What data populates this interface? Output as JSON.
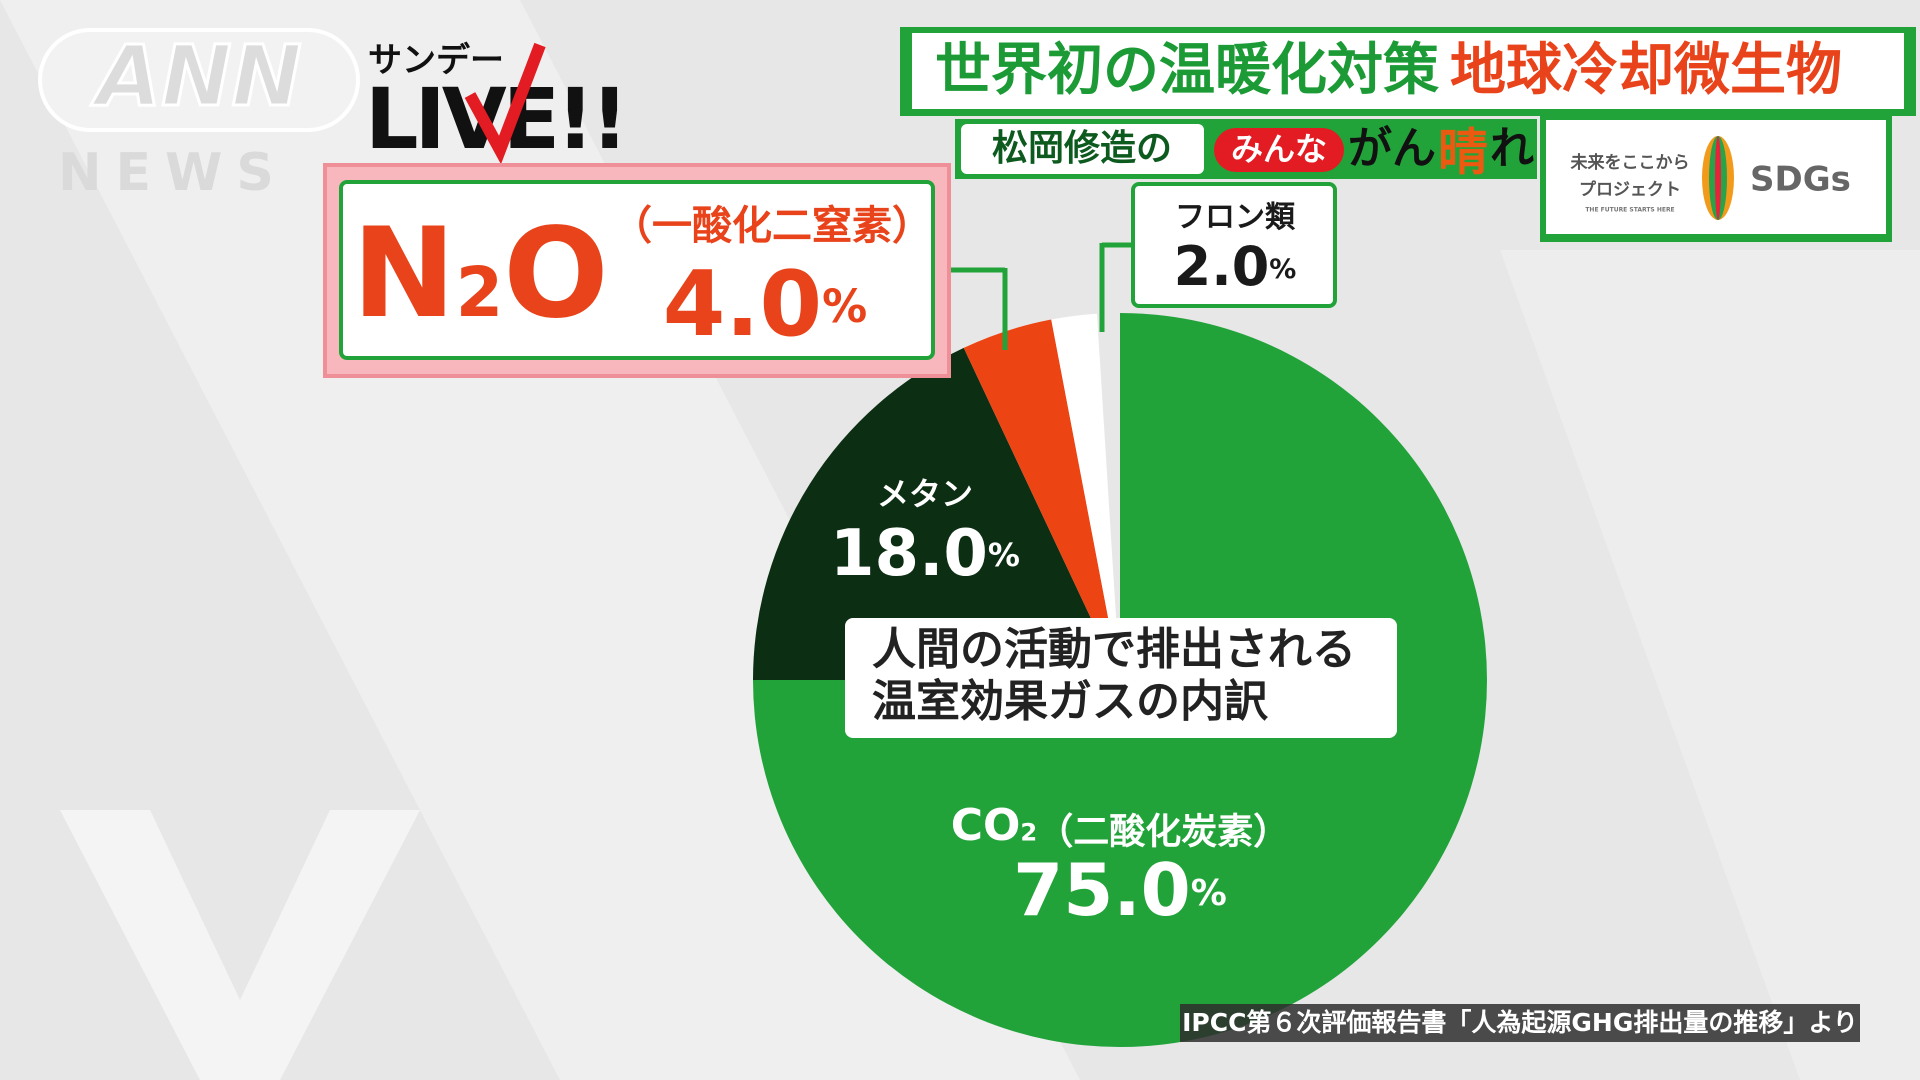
{
  "logo": {
    "network": "ANN",
    "news": "NEWS"
  },
  "show": {
    "kicker": "サンデー",
    "name": "LIVE!!"
  },
  "headline": {
    "lead": "世界初の温暖化対策",
    "topic": "地球冷却微生物"
  },
  "segment": {
    "host": "松岡修造の",
    "title_parts": [
      "みんな",
      "がん",
      "晴",
      "れ"
    ]
  },
  "sdgs": {
    "project_lines": [
      "未来をここから",
      "プロジェクト"
    ],
    "tagline": "THE FUTURE STARTS HERE",
    "label": "SDGs"
  },
  "chart_data": {
    "type": "pie",
    "title_lines": [
      "人間の活動で排出される",
      "温室効果ガスの内訳"
    ],
    "categories": [
      "CO2（二酸化炭素）",
      "メタン",
      "N2O（一酸化二窒素）",
      "フロン類"
    ],
    "values": [
      75.0,
      18.0,
      4.0,
      2.0
    ],
    "value_labels": [
      "75.0%",
      "18.0%",
      "4.0%",
      "2.0%"
    ],
    "colors": [
      "#22a33a",
      "#0c2e12",
      "#ec4412",
      "#ffffff"
    ]
  },
  "source": "IPCC第６次評価報告書「人為起源GHG排出量の推移」より"
}
